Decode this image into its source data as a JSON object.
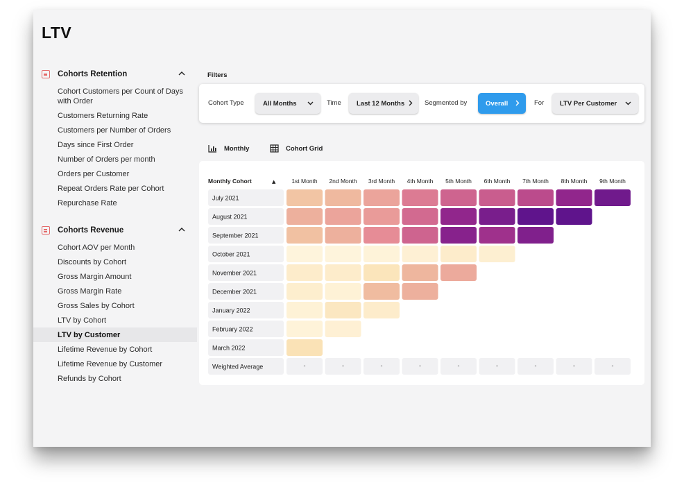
{
  "page": {
    "title": "LTV"
  },
  "sidebar": {
    "sections": [
      {
        "title": "Cohorts Retention",
        "icon": "lock-icon",
        "items": [
          "Cohort Customers per Count of Days with Order",
          "Customers Returning Rate",
          "Customers per Number of Orders",
          "Days since First Order",
          "Number of Orders per month",
          "Orders per Customer",
          "Repeat Orders Rate per Cohort",
          "Repurchase Rate"
        ]
      },
      {
        "title": "Cohorts Revenue",
        "icon": "document-icon",
        "items": [
          "Cohort AOV per Month",
          "Discounts by Cohort",
          "Gross Margin Amount",
          "Gross Margin Rate",
          "Gross Sales by Cohort",
          "LTV by Cohort",
          "LTV by Customer",
          "Lifetime Revenue by Cohort",
          "Lifetime Revenue by Customer",
          "Refunds by Cohort"
        ],
        "active_item": "LTV by Customer"
      }
    ]
  },
  "filters": {
    "label": "Filters",
    "cohort_type": {
      "label": "Cohort Type",
      "value": "All Months"
    },
    "time": {
      "label": "Time",
      "value": "Last 12 Months"
    },
    "segmented_by": {
      "label": "Segmented by",
      "value": "Overall"
    },
    "for": {
      "label": "For",
      "value": "LTV Per Customer"
    }
  },
  "views": {
    "monthly": "Monthly",
    "cohort_grid": "Cohort Grid"
  },
  "colors": {
    "accent": "#2f9bec",
    "icon": "#e46a6a"
  },
  "chart_data": {
    "type": "heatmap",
    "corner_label": "Monthly Cohort",
    "sort_indicator": "▲",
    "columns": [
      "1st Month",
      "2nd Month",
      "3rd Month",
      "4th Month",
      "5th Month",
      "6th Month",
      "7th Month",
      "8th Month",
      "9th Month"
    ],
    "rows": [
      "July 2021",
      "August 2021",
      "September 2021",
      "October 2021",
      "November 2021",
      "December 2021",
      "January 2022",
      "February 2022",
      "March 2022"
    ],
    "intensity_scale": "0 = pale yellow, 1 = deep purple",
    "intensity": [
      [
        0.3,
        0.35,
        0.42,
        0.55,
        0.62,
        0.64,
        0.7,
        0.85,
        0.95
      ],
      [
        0.38,
        0.42,
        0.45,
        0.6,
        0.85,
        0.92,
        1.0,
        1.0
      ],
      [
        0.32,
        0.38,
        0.5,
        0.62,
        0.88,
        0.8,
        0.9
      ],
      [
        0.02,
        0.02,
        0.03,
        0.05,
        0.08,
        0.06
      ],
      [
        0.08,
        0.08,
        0.14,
        0.36,
        0.4
      ],
      [
        0.07,
        0.04,
        0.34,
        0.38
      ],
      [
        0.04,
        0.12,
        0.08
      ],
      [
        0.03,
        0.05
      ],
      [
        0.16
      ]
    ],
    "footer_row": {
      "label": "Weighted Average",
      "values": [
        "-",
        "-",
        "-",
        "-",
        "-",
        "-",
        "-",
        "-",
        "-"
      ]
    }
  }
}
